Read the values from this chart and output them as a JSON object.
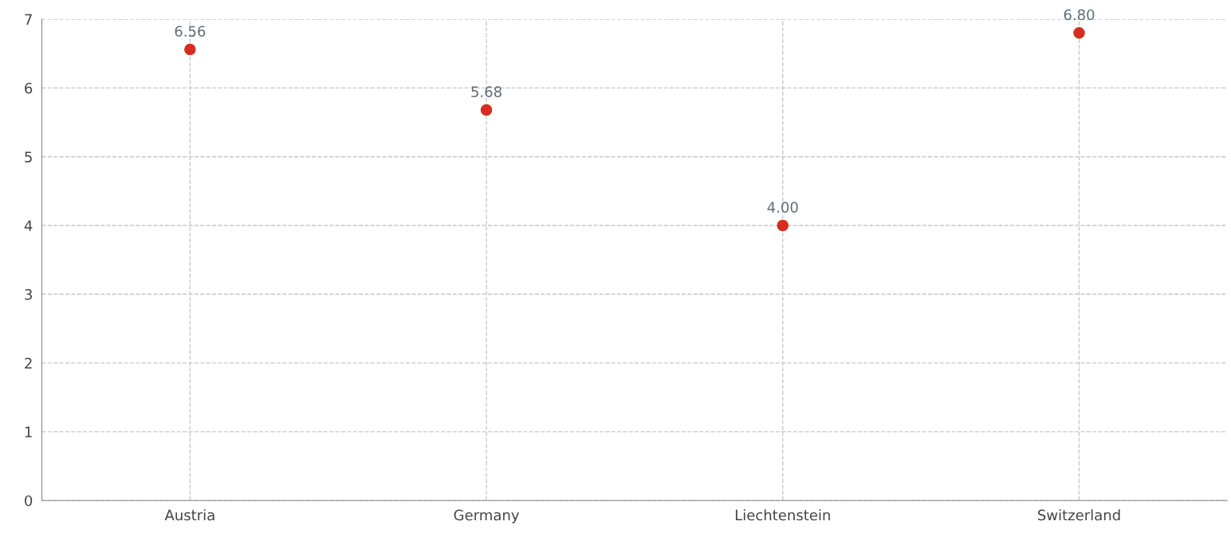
{
  "chart_data": {
    "type": "scatter",
    "categories": [
      "Austria",
      "Germany",
      "Liechtenstein",
      "Switzerland"
    ],
    "series": [
      {
        "color": "#d62d20",
        "values": [
          6.56,
          5.68,
          4.0,
          6.8
        ],
        "value_labels": [
          "6.56",
          "5.68",
          "4.00",
          "6.80"
        ]
      }
    ],
    "ylim": [
      0,
      7
    ],
    "yticks": [
      0,
      1,
      2,
      3,
      4,
      5,
      6,
      7
    ],
    "grid": true,
    "marker": "circle"
  }
}
